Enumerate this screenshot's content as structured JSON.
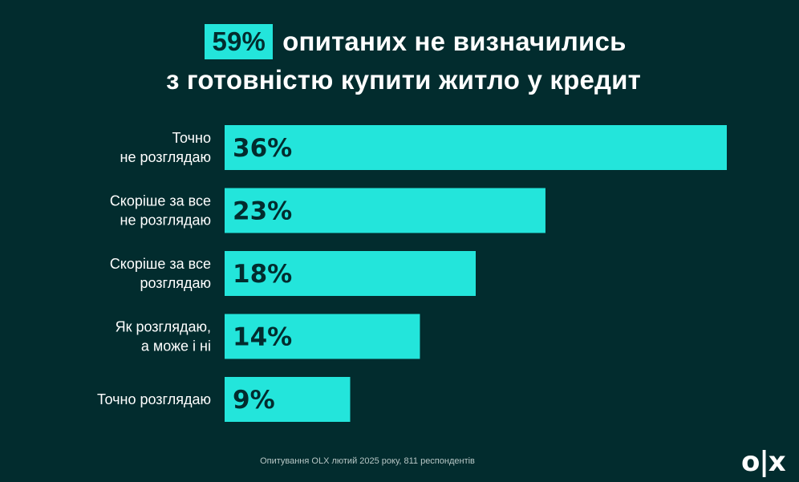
{
  "headline": {
    "highlight": "59%",
    "line1_rest": "опитаних не визначились",
    "line2": "з готовністю купити житло у кредит"
  },
  "colors": {
    "background": "#022c2e",
    "bar": "#23e5db",
    "text_light": "#ffffff",
    "text_dark": "#022c2e"
  },
  "chart_data": {
    "type": "bar",
    "orientation": "horizontal",
    "title": "59% опитаних не визначились з готовністю купити житло у кредит",
    "categories": [
      [
        "Точно",
        "не розглядаю"
      ],
      [
        "Скоріше за все",
        "не розглядаю"
      ],
      [
        "Скоріше за все",
        "розглядаю"
      ],
      [
        "Як розглядаю,",
        "а може і ні"
      ],
      [
        "Точно розглядаю"
      ]
    ],
    "values": [
      36,
      23,
      18,
      14,
      9
    ],
    "value_labels": [
      "36%",
      "23%",
      "18%",
      "14%",
      "9%"
    ],
    "unit": "%",
    "xlim": [
      0,
      36
    ],
    "grid": false,
    "legend": "none"
  },
  "footnote": "Опитування OLX лютий 2025 року, 811 респондентів",
  "logo": "OLX"
}
